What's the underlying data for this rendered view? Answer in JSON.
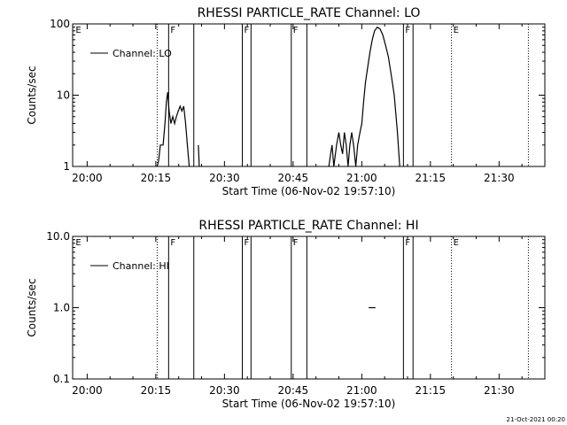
{
  "footer": {
    "timestamp": "21-Oct-2021 00:20"
  },
  "chart_data": [
    {
      "type": "line",
      "title": "RHESSI PARTICLE_RATE Channel: LO",
      "xlabel": "Start Time (06-Nov-02 19:57:10)",
      "ylabel": "Counts/sec",
      "x_unit": "minutes after 20:00",
      "xlim": [
        -3.17,
        100
      ],
      "ylim": [
        1,
        100
      ],
      "yscale": "log",
      "x_ticks": [
        {
          "x": 0,
          "label": "20:00"
        },
        {
          "x": 15,
          "label": "20:15"
        },
        {
          "x": 30,
          "label": "20:30"
        },
        {
          "x": 45,
          "label": "20:45"
        },
        {
          "x": 60,
          "label": "21:00"
        },
        {
          "x": 75,
          "label": "21:15"
        },
        {
          "x": 90,
          "label": "21:30"
        }
      ],
      "y_ticks": [
        {
          "y": 1,
          "label": "1"
        },
        {
          "y": 10,
          "label": "10"
        },
        {
          "y": 100,
          "label": "100"
        }
      ],
      "legend": {
        "placement": "top-left",
        "label": "Channel: LO"
      },
      "markers": [
        {
          "x": -2.9,
          "label": "E",
          "style": "none"
        },
        {
          "x": 15.3,
          "label": "",
          "style": "dotted"
        },
        {
          "x": 17.8,
          "label": "F",
          "style": "solid"
        },
        {
          "x": 23.3,
          "label": "",
          "style": "solid"
        },
        {
          "x": 33.9,
          "label": "F",
          "style": "solid"
        },
        {
          "x": 35.8,
          "label": "",
          "style": "solid"
        },
        {
          "x": 44.6,
          "label": "F",
          "style": "solid"
        },
        {
          "x": 48.0,
          "label": "",
          "style": "solid"
        },
        {
          "x": 69.1,
          "label": "F",
          "style": "solid"
        },
        {
          "x": 71.2,
          "label": "",
          "style": "solid"
        },
        {
          "x": 79.6,
          "label": "E",
          "style": "dotted"
        },
        {
          "x": 96.4,
          "label": "",
          "style": "dotted"
        }
      ],
      "series": [
        {
          "segments": [
            [
              [
                15.3,
                1
              ],
              [
                15.6,
                1.2
              ],
              [
                16.0,
                2
              ],
              [
                16.6,
                2
              ],
              [
                17.0,
                4
              ],
              [
                17.3,
                8
              ],
              [
                17.6,
                11
              ],
              [
                17.9,
                6
              ],
              [
                18.3,
                4
              ],
              [
                18.7,
                5
              ],
              [
                19.1,
                4
              ],
              [
                19.5,
                5
              ],
              [
                19.9,
                6
              ],
              [
                20.3,
                7
              ],
              [
                20.7,
                6
              ],
              [
                21.1,
                7
              ],
              [
                21.5,
                4
              ],
              [
                21.9,
                2
              ],
              [
                22.3,
                1
              ]
            ],
            [
              [
                24.3,
                2
              ],
              [
                24.5,
                1
              ]
            ],
            [
              [
                52.8,
                1
              ],
              [
                53.2,
                1.5
              ],
              [
                53.5,
                2
              ],
              [
                53.9,
                1
              ],
              [
                54.5,
                2
              ],
              [
                55.0,
                3
              ],
              [
                55.4,
                2
              ],
              [
                55.8,
                1.5
              ],
              [
                56.2,
                3
              ],
              [
                56.6,
                2
              ],
              [
                57.0,
                1
              ],
              [
                57.4,
                2
              ],
              [
                57.8,
                3
              ],
              [
                58.2,
                2
              ],
              [
                58.7,
                1
              ],
              [
                59.1,
                2
              ],
              [
                59.6,
                3
              ],
              [
                60.0,
                4
              ],
              [
                60.4,
                8
              ],
              [
                60.8,
                15
              ],
              [
                61.3,
                25
              ],
              [
                61.8,
                40
              ],
              [
                62.3,
                60
              ],
              [
                62.8,
                80
              ],
              [
                63.4,
                90
              ],
              [
                64.0,
                85
              ],
              [
                64.6,
                70
              ],
              [
                65.2,
                50
              ],
              [
                65.8,
                35
              ],
              [
                66.4,
                20
              ],
              [
                67.1,
                10
              ],
              [
                67.8,
                3
              ],
              [
                68.3,
                1
              ]
            ]
          ]
        }
      ]
    },
    {
      "type": "line",
      "title": "RHESSI PARTICLE_RATE Channel: HI",
      "xlabel": "Start Time (06-Nov-02 19:57:10)",
      "ylabel": "Counts/sec",
      "x_unit": "minutes after 20:00",
      "xlim": [
        -3.17,
        100
      ],
      "ylim": [
        0.1,
        10
      ],
      "yscale": "log",
      "x_ticks": [
        {
          "x": 0,
          "label": "20:00"
        },
        {
          "x": 15,
          "label": "20:15"
        },
        {
          "x": 30,
          "label": "20:30"
        },
        {
          "x": 45,
          "label": "20:45"
        },
        {
          "x": 60,
          "label": "21:00"
        },
        {
          "x": 75,
          "label": "21:15"
        },
        {
          "x": 90,
          "label": "21:30"
        }
      ],
      "y_ticks": [
        {
          "y": 0.1,
          "label": "0.1"
        },
        {
          "y": 1,
          "label": "1.0"
        },
        {
          "y": 10,
          "label": "10.0"
        }
      ],
      "legend": {
        "placement": "top-left",
        "label": "Channel: HI"
      },
      "markers": [
        {
          "x": -2.9,
          "label": "E",
          "style": "none"
        },
        {
          "x": 15.3,
          "label": "",
          "style": "dotted"
        },
        {
          "x": 17.8,
          "label": "F",
          "style": "solid"
        },
        {
          "x": 23.3,
          "label": "",
          "style": "solid"
        },
        {
          "x": 33.9,
          "label": "F",
          "style": "solid"
        },
        {
          "x": 35.8,
          "label": "",
          "style": "solid"
        },
        {
          "x": 44.6,
          "label": "F",
          "style": "solid"
        },
        {
          "x": 48.0,
          "label": "",
          "style": "solid"
        },
        {
          "x": 69.1,
          "label": "F",
          "style": "solid"
        },
        {
          "x": 71.2,
          "label": "",
          "style": "solid"
        },
        {
          "x": 79.6,
          "label": "E",
          "style": "dotted"
        },
        {
          "x": 96.4,
          "label": "",
          "style": "dotted"
        }
      ],
      "series": [
        {
          "segments": [
            [
              [
                61.5,
                1
              ],
              [
                63.0,
                1
              ]
            ]
          ]
        }
      ]
    }
  ]
}
